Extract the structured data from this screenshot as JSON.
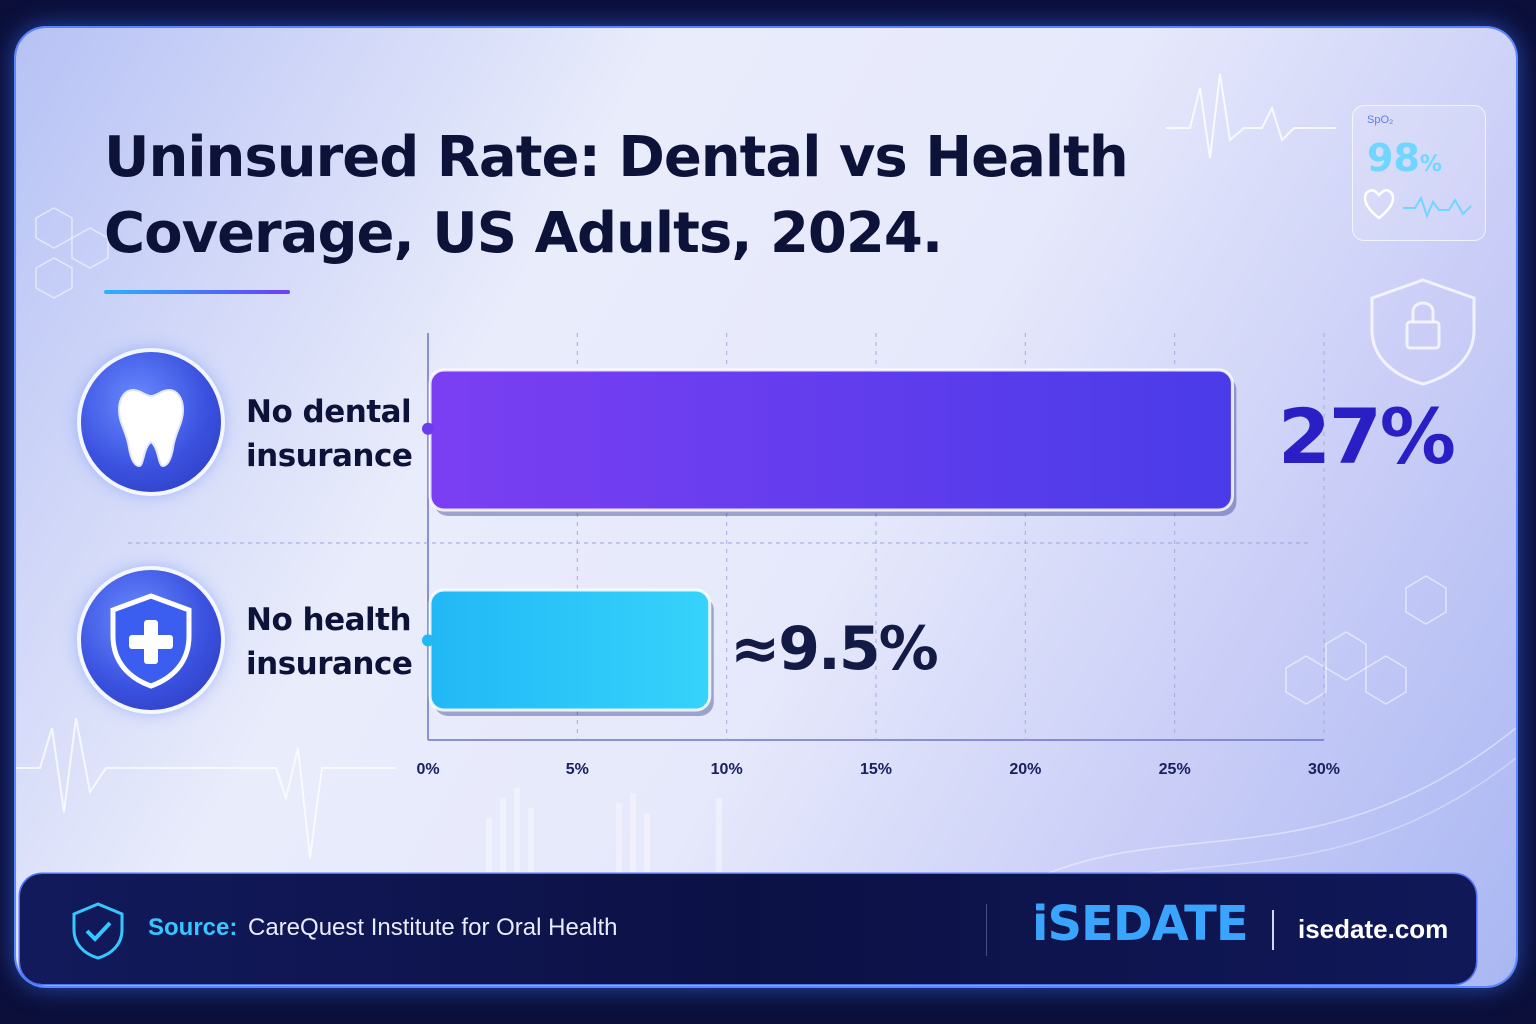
{
  "title_line1": "Uninsured Rate: Dental vs Health",
  "title_line2": "Coverage, US Adults, 2024.",
  "spo2": {
    "label": "SpO₂",
    "value": "98",
    "unit": "%"
  },
  "colors": {
    "dental_bar": "#5b35f0",
    "health_bar": "#22c6f8",
    "dental_value": "#2a1fc4",
    "health_value": "#141a46",
    "accent_cyan": "#38c6ff"
  },
  "chart_data": {
    "type": "bar",
    "orientation": "horizontal",
    "categories": [
      "No dental insurance",
      "No health insurance"
    ],
    "category_lines": [
      [
        "No dental",
        "insurance"
      ],
      [
        "No health",
        "insurance"
      ]
    ],
    "values": [
      27,
      9.5
    ],
    "value_labels": [
      "27%",
      "≈9.5%"
    ],
    "x_ticks": [
      "0%",
      "5%",
      "10%",
      "15%",
      "20%",
      "25%",
      "30%"
    ],
    "xlim": [
      0,
      30
    ],
    "grid": "vertical dashed",
    "icons": [
      "tooth-icon",
      "shield-plus-icon"
    ]
  },
  "footer": {
    "source_key": "Source:",
    "source_value": "CareQuest Institute for Oral Health",
    "brand": "iSEDATE",
    "domain": "isedate.com"
  }
}
